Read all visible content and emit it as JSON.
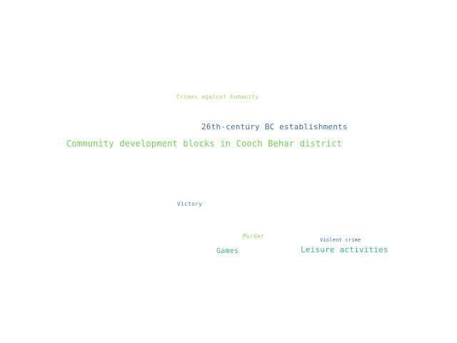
{
  "words": [
    {
      "id": "crimes",
      "text": "Crimes against humanity",
      "color": "#a3d36b"
    },
    {
      "id": "26th",
      "text": "26th-century BC establishments",
      "color": "#3a6fa0"
    },
    {
      "id": "cdb",
      "text": "Community development blocks in Cooch Behar district",
      "color": "#6cd04e"
    },
    {
      "id": "victory",
      "text": "Victory",
      "color": "#3a8aa5"
    },
    {
      "id": "murder",
      "text": "Murder",
      "color": "#8fcf60"
    },
    {
      "id": "violent",
      "text": "Violent crime",
      "color": "#3b6aa0"
    },
    {
      "id": "games",
      "text": "Games",
      "color": "#3bb08a"
    },
    {
      "id": "leisure",
      "text": "Leisure activities",
      "color": "#2fae9a"
    }
  ]
}
